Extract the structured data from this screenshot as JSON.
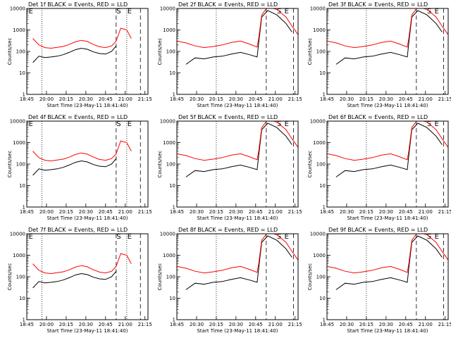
{
  "figure": {
    "title_template": "Det {n}f BLACK = Events, RED = LLD",
    "xlabel": "Start Time (23-May-11 18:41:40)",
    "ylabel": "Counts/sec",
    "yticks": [
      "1",
      "10",
      "100",
      "1000",
      "10000"
    ],
    "yscale": "log",
    "xlim_minutes": [
      0,
      40
    ],
    "colors": {
      "events": "#000000",
      "lld": "#ff0000",
      "frame": "#000000"
    }
  },
  "chart_data": [
    {
      "detector": "1",
      "type": "line",
      "title": "Det 1f BLACK = Events, RED = LLD",
      "xtick_labels": [
        "18:45",
        "20:00",
        "20:15",
        "20:30",
        "20:45",
        "21:00",
        "21:15"
      ],
      "ylim": [
        1,
        10000
      ],
      "series": [
        {
          "name": "Events",
          "x": [
            2,
            4,
            6,
            8,
            10,
            12,
            14,
            16,
            18,
            20,
            22,
            24,
            26,
            28,
            29.5
          ],
          "y": [
            30,
            60,
            52,
            55,
            60,
            70,
            90,
            120,
            140,
            125,
            95,
            80,
            75,
            100,
            180
          ]
        },
        {
          "name": "LLD",
          "x": [
            2,
            4,
            6,
            8,
            10,
            12,
            14,
            16,
            18,
            20,
            22,
            24,
            26,
            28,
            29.5,
            31,
            33,
            34.5
          ],
          "y": [
            400,
            200,
            150,
            140,
            155,
            170,
            210,
            280,
            330,
            290,
            210,
            165,
            150,
            180,
            300,
            1200,
            1000,
            400
          ]
        }
      ],
      "annotations": [
        "E",
        "S",
        "E"
      ]
    },
    {
      "detector": "2",
      "type": "line",
      "title": "Det 2f BLACK = Events, RED = LLD",
      "xtick_labels": [
        "18:45",
        "20:30",
        "20:15",
        "20:30",
        "20:45",
        "21:00",
        "21:15"
      ],
      "ylim": [
        1,
        10000
      ],
      "series": [
        {
          "name": "Events",
          "x": [
            3,
            6,
            9,
            12,
            15,
            18,
            21,
            24,
            26.5,
            27,
            28,
            30,
            33,
            36,
            38
          ],
          "y": [
            25,
            50,
            45,
            55,
            60,
            75,
            90,
            70,
            55,
            250,
            4000,
            8000,
            5000,
            2000,
            800
          ]
        },
        {
          "name": "LLD",
          "x": [
            0,
            3,
            6,
            9,
            12,
            15,
            18,
            21,
            24,
            26.5,
            27,
            28,
            30,
            33,
            36,
            38,
            40
          ],
          "y": [
            300,
            250,
            180,
            150,
            170,
            200,
            260,
            300,
            220,
            160,
            400,
            5000,
            12000,
            9000,
            4000,
            1500,
            600
          ]
        }
      ],
      "annotations": [
        "S",
        "E"
      ]
    },
    {
      "detector": "3",
      "type": "line",
      "title": "Det 3f BLACK = Events, RED = LLD",
      "xtick_labels": [
        "18:45",
        "20:30",
        "20:15",
        "20:30",
        "20:45",
        "21:00",
        "21:15"
      ],
      "ylim": [
        1,
        10000
      ],
      "series": [
        {
          "name": "Events",
          "x": [
            3,
            6,
            9,
            12,
            15,
            18,
            21,
            24,
            26.5,
            27,
            28,
            30,
            33,
            36,
            38
          ],
          "y": [
            25,
            50,
            45,
            55,
            60,
            75,
            90,
            70,
            55,
            250,
            4000,
            8000,
            5000,
            2000,
            800
          ]
        },
        {
          "name": "LLD",
          "x": [
            0,
            3,
            6,
            9,
            12,
            15,
            18,
            21,
            24,
            26.5,
            27,
            28,
            30,
            33,
            36,
            38,
            40
          ],
          "y": [
            300,
            250,
            180,
            150,
            170,
            200,
            260,
            300,
            220,
            160,
            400,
            5000,
            12000,
            9000,
            4000,
            1500,
            600
          ]
        }
      ],
      "annotations": [
        "S",
        "E"
      ]
    },
    {
      "detector": "4",
      "type": "line",
      "title": "Det 4f BLACK = Events, RED = LLD",
      "xtick_labels": [
        "18:45",
        "20:00",
        "20:15",
        "20:30",
        "20:45",
        "21:00",
        "21:15"
      ],
      "ylim": [
        1,
        10000
      ],
      "series": [
        {
          "name": "Events",
          "x": [
            2,
            4,
            6,
            8,
            10,
            12,
            14,
            16,
            18,
            20,
            22,
            24,
            26,
            28,
            29.5
          ],
          "y": [
            30,
            60,
            52,
            55,
            60,
            70,
            90,
            120,
            140,
            125,
            95,
            80,
            75,
            100,
            180
          ]
        },
        {
          "name": "LLD",
          "x": [
            2,
            4,
            6,
            8,
            10,
            12,
            14,
            16,
            18,
            20,
            22,
            24,
            26,
            28,
            29.5,
            31,
            33,
            34.5
          ],
          "y": [
            400,
            200,
            150,
            140,
            155,
            170,
            210,
            280,
            330,
            290,
            210,
            165,
            150,
            180,
            300,
            1200,
            1000,
            400
          ]
        }
      ],
      "annotations": [
        "E",
        "S",
        "E"
      ]
    },
    {
      "detector": "5",
      "type": "line",
      "title": "Det 5f BLACK = Events, RED = LLD",
      "xtick_labels": [
        "18:45",
        "20:30",
        "20:15",
        "20:30",
        "20:45",
        "21:00",
        "21:15"
      ],
      "ylim": [
        1,
        10000
      ],
      "series": [
        {
          "name": "Events",
          "x": [
            3,
            6,
            9,
            12,
            15,
            18,
            21,
            24,
            26.5,
            27,
            28,
            30,
            33,
            36,
            38
          ],
          "y": [
            25,
            50,
            45,
            55,
            60,
            75,
            90,
            70,
            55,
            250,
            4000,
            8000,
            5000,
            2000,
            800
          ]
        },
        {
          "name": "LLD",
          "x": [
            0,
            3,
            6,
            9,
            12,
            15,
            18,
            21,
            24,
            26.5,
            27,
            28,
            30,
            33,
            36,
            38,
            40
          ],
          "y": [
            300,
            250,
            180,
            150,
            170,
            200,
            260,
            300,
            220,
            160,
            400,
            5000,
            12000,
            9000,
            4000,
            1500,
            600
          ]
        }
      ],
      "annotations": [
        "S",
        "E"
      ]
    },
    {
      "detector": "6",
      "type": "line",
      "title": "Det 6f BLACK = Events, RED = LLD",
      "xtick_labels": [
        "18:45",
        "20:30",
        "20:15",
        "20:30",
        "20:45",
        "21:00",
        "21:15"
      ],
      "ylim": [
        1,
        10000
      ],
      "series": [
        {
          "name": "Events",
          "x": [
            3,
            6,
            9,
            12,
            15,
            18,
            21,
            24,
            26.5,
            27,
            28,
            30,
            33,
            36,
            38
          ],
          "y": [
            25,
            50,
            45,
            55,
            60,
            75,
            90,
            70,
            55,
            250,
            4000,
            8000,
            5000,
            2000,
            800
          ]
        },
        {
          "name": "LLD",
          "x": [
            0,
            3,
            6,
            9,
            12,
            15,
            18,
            21,
            24,
            26.5,
            27,
            28,
            30,
            33,
            36,
            38,
            40
          ],
          "y": [
            300,
            250,
            180,
            150,
            170,
            200,
            260,
            300,
            220,
            160,
            400,
            5000,
            12000,
            9000,
            4000,
            1500,
            600
          ]
        }
      ],
      "annotations": [
        "S",
        "E"
      ]
    },
    {
      "detector": "7",
      "type": "line",
      "title": "Det 7f BLACK = Events, RED = LLD",
      "xtick_labels": [
        "18:45",
        "20:00",
        "20:15",
        "20:30",
        "20:45",
        "21:00",
        "21:15"
      ],
      "ylim": [
        1,
        10000
      ],
      "series": [
        {
          "name": "Events",
          "x": [
            2,
            4,
            6,
            8,
            10,
            12,
            14,
            16,
            18,
            20,
            22,
            24,
            26,
            28,
            29.5
          ],
          "y": [
            30,
            60,
            52,
            55,
            60,
            70,
            90,
            120,
            140,
            125,
            95,
            80,
            75,
            100,
            180
          ]
        },
        {
          "name": "LLD",
          "x": [
            2,
            4,
            6,
            8,
            10,
            12,
            14,
            16,
            18,
            20,
            22,
            24,
            26,
            28,
            29.5,
            31,
            33,
            34.5
          ],
          "y": [
            400,
            200,
            150,
            140,
            155,
            170,
            210,
            280,
            330,
            290,
            210,
            165,
            150,
            180,
            300,
            1200,
            1000,
            400
          ]
        }
      ],
      "annotations": [
        "E",
        "S",
        "E"
      ]
    },
    {
      "detector": "8",
      "type": "line",
      "title": "Det 8f BLACK = Events, RED = LLD",
      "xtick_labels": [
        "18:45",
        "20:30",
        "20:15",
        "20:30",
        "20:45",
        "21:00",
        "21:15"
      ],
      "ylim": [
        1,
        10000
      ],
      "series": [
        {
          "name": "Events",
          "x": [
            3,
            6,
            9,
            12,
            15,
            18,
            21,
            24,
            26.5,
            27,
            28,
            30,
            33,
            36,
            38
          ],
          "y": [
            25,
            50,
            45,
            55,
            60,
            75,
            90,
            70,
            55,
            250,
            4000,
            8000,
            5000,
            2000,
            800
          ]
        },
        {
          "name": "LLD",
          "x": [
            0,
            3,
            6,
            9,
            12,
            15,
            18,
            21,
            24,
            26.5,
            27,
            28,
            30,
            33,
            36,
            38,
            40
          ],
          "y": [
            300,
            250,
            180,
            150,
            170,
            200,
            260,
            300,
            220,
            160,
            400,
            5000,
            12000,
            9000,
            4000,
            1500,
            600
          ]
        }
      ],
      "annotations": [
        "S",
        "E"
      ]
    },
    {
      "detector": "9",
      "type": "line",
      "title": "Det 9f BLACK = Events, RED = LLD",
      "xtick_labels": [
        "18:45",
        "20:30",
        "20:15",
        "20:30",
        "20:45",
        "21:00",
        "21:15"
      ],
      "ylim": [
        1,
        10000
      ],
      "series": [
        {
          "name": "Events",
          "x": [
            3,
            6,
            9,
            12,
            15,
            18,
            21,
            24,
            26.5,
            27,
            28,
            30,
            33,
            36,
            38
          ],
          "y": [
            25,
            50,
            45,
            55,
            60,
            75,
            90,
            70,
            55,
            250,
            4000,
            8000,
            5000,
            2000,
            800
          ]
        },
        {
          "name": "LLD",
          "x": [
            0,
            3,
            6,
            9,
            12,
            15,
            18,
            21,
            24,
            26.5,
            27,
            28,
            30,
            33,
            36,
            38,
            40
          ],
          "y": [
            300,
            250,
            180,
            150,
            170,
            200,
            260,
            300,
            220,
            160,
            400,
            5000,
            12000,
            9000,
            4000,
            1500,
            600
          ]
        }
      ],
      "annotations": [
        "S",
        "E"
      ]
    }
  ]
}
